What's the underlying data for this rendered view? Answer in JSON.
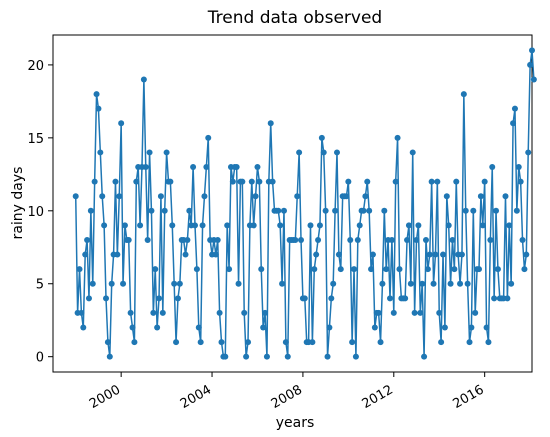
{
  "chart_data": {
    "type": "line",
    "title": "Trend data observed",
    "xlabel": "years",
    "ylabel": "rainy days",
    "x_start": "1998-01",
    "x_step": "month",
    "x_tick_labels": [
      "2000",
      "2004",
      "2008",
      "2012",
      "2016"
    ],
    "y_ticks": [
      0,
      5,
      10,
      15,
      20
    ],
    "ylim": [
      -1.05,
      22.05
    ],
    "xlim": [
      "1997-01",
      "2018-02"
    ],
    "grid": false,
    "legend": "none",
    "series": [
      {
        "color": "#1f77b4",
        "marker": "circle",
        "values": [
          11,
          3,
          6,
          3,
          2,
          7,
          8,
          4,
          10,
          5,
          12,
          18,
          17,
          14,
          11,
          9,
          4,
          1,
          0,
          5,
          7,
          12,
          7,
          11,
          16,
          5,
          9,
          8,
          8,
          3,
          2,
          1,
          12,
          13,
          9,
          13,
          19,
          13,
          8,
          14,
          10,
          3,
          6,
          2,
          4,
          11,
          3,
          10,
          14,
          12,
          12,
          9,
          5,
          1,
          4,
          5,
          8,
          8,
          7,
          8,
          10,
          9,
          13,
          9,
          6,
          2,
          1,
          9,
          11,
          13,
          15,
          8,
          7,
          8,
          7,
          8,
          3,
          1,
          0,
          0,
          9,
          6,
          13,
          12,
          13,
          13,
          5,
          12,
          12,
          3,
          0,
          1,
          9,
          12,
          9,
          11,
          13,
          12,
          6,
          2,
          3,
          0,
          12,
          16,
          12,
          10,
          10,
          10,
          9,
          5,
          10,
          1,
          0,
          8,
          8,
          8,
          8,
          11,
          14,
          8,
          4,
          4,
          1,
          1,
          9,
          1,
          6,
          7,
          8,
          9,
          15,
          14,
          10,
          0,
          2,
          4,
          5,
          10,
          14,
          7,
          6,
          11,
          11,
          11,
          12,
          8,
          1,
          6,
          0,
          8,
          9,
          10,
          10,
          11,
          12,
          10,
          6,
          7,
          2,
          3,
          3,
          1,
          5,
          10,
          6,
          8,
          4,
          8,
          3,
          12,
          15,
          6,
          4,
          4,
          4,
          8,
          9,
          5,
          14,
          3,
          8,
          9,
          3,
          5,
          0,
          8,
          6,
          7,
          12,
          5,
          7,
          12,
          3,
          1,
          7,
          2,
          11,
          9,
          5,
          8,
          6,
          12,
          7,
          5,
          7,
          18,
          10,
          5,
          1,
          2,
          10,
          3,
          6,
          6,
          11,
          9,
          12,
          2,
          1,
          8,
          13,
          4,
          10,
          6,
          4,
          4,
          4,
          11,
          4,
          9,
          5,
          16,
          17,
          10,
          13,
          12,
          8,
          6,
          7,
          14,
          20,
          21,
          19
        ]
      }
    ]
  }
}
